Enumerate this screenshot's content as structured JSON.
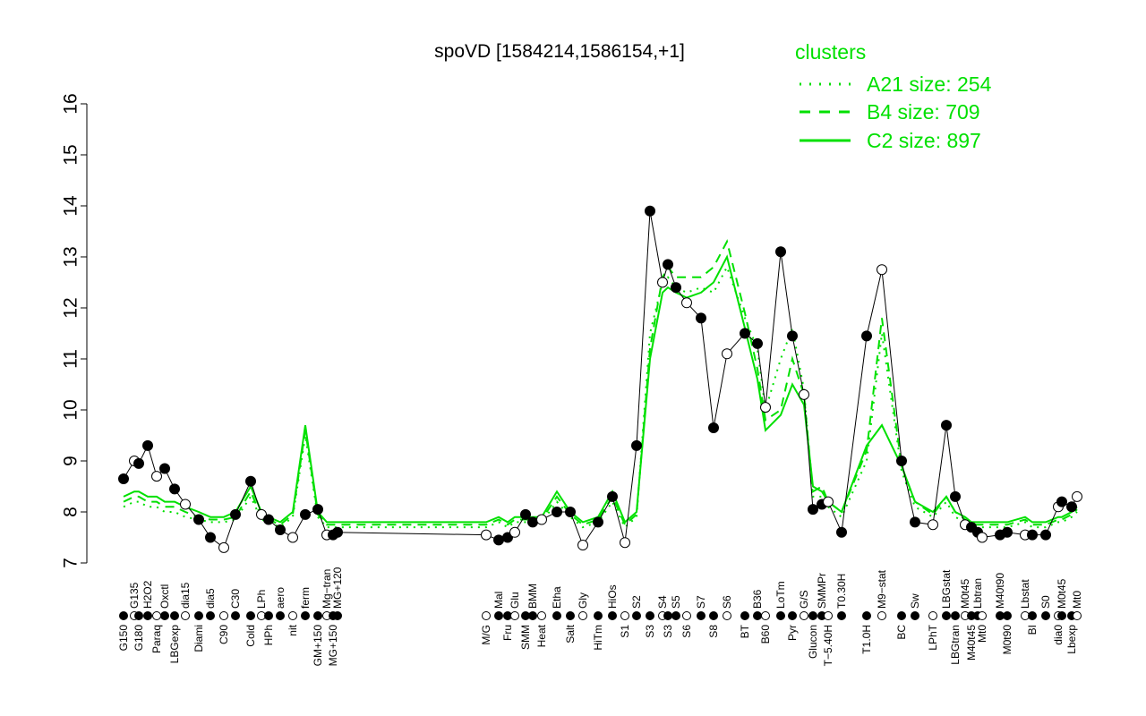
{
  "chart_data": {
    "type": "line",
    "title": "spoVD [1584214,1586154,+1]",
    "xlabel": "",
    "ylabel": "",
    "ylim": [
      7,
      16
    ],
    "yticks": [
      "7",
      "8",
      "9",
      "10",
      "11",
      "12",
      "13",
      "14",
      "15",
      "16"
    ],
    "legend": {
      "title": "clusters",
      "position": "top-right",
      "entries": [
        {
          "label": "A21 size: 254",
          "style": "dotted",
          "color": "#00e000"
        },
        {
          "label": "B4 size: 709",
          "style": "dashed",
          "color": "#00e000"
        },
        {
          "label": "C2 size: 897",
          "style": "solid",
          "color": "#00e000"
        }
      ]
    },
    "categories": [
      "G150",
      "G135",
      "G180",
      "H2O2",
      "Paraq",
      "Oxctl",
      "LBGexp",
      "dia15",
      "Diami",
      "dia5",
      "C90",
      "C30",
      "Cold",
      "LPh",
      "HPh",
      "aero",
      "nit",
      "ferm",
      "GM+150",
      "Mg−tran",
      "MG+150",
      "MG+120",
      "M/G",
      "Mal",
      "Fru",
      "Glu",
      "SMM",
      "BMM",
      "Heat",
      "Etha",
      "Salt",
      "Gly",
      "HiTm",
      "HiOs",
      "S1",
      "S2",
      "S3",
      "S4",
      "S3",
      "S5",
      "S6",
      "S7",
      "S8",
      "S6",
      "BT",
      "B36",
      "B60",
      "LoTm",
      "Pyr",
      "G/S",
      "Glucon",
      "SMMPr",
      "T−5.40H",
      "T0.30H",
      "T1.0H",
      "M9−stat",
      "BC",
      "Sw",
      "LPhT",
      "LBGstat",
      "LBGtran",
      "M0t45",
      "M40t45",
      "Lbtran",
      "Mt0",
      "M40t90",
      "M0t90",
      "Lbstat",
      "BI",
      "S0",
      "dia0",
      "M0t45",
      "Lbexp",
      "Mt0"
    ],
    "series": [
      {
        "values": [
          8.65,
          9.0,
          8.95,
          9.3,
          8.7,
          8.85,
          8.45,
          8.15,
          7.85,
          7.5,
          7.3,
          7.95,
          8.6,
          7.95,
          7.85,
          7.65,
          7.5,
          7.95,
          8.05,
          7.55,
          7.55,
          7.6,
          7.55,
          7.45,
          7.5,
          7.6,
          7.95,
          7.8,
          7.85,
          8.0,
          8.0,
          7.35,
          7.8,
          8.3,
          7.4,
          9.3,
          13.9,
          12.5,
          12.85,
          12.4,
          12.1,
          11.8,
          9.65,
          11.1,
          11.5,
          11.3,
          10.05,
          13.1,
          11.45,
          10.3,
          8.05,
          8.15,
          8.2,
          7.6,
          11.45,
          12.75,
          9.0,
          7.8,
          7.75,
          9.7,
          8.3,
          7.75,
          7.7,
          7.6,
          7.5,
          7.55,
          7.6,
          7.55,
          7.55,
          7.55,
          8.1,
          8.2,
          8.1,
          8.3
        ],
        "color": "#000000"
      },
      {
        "name": "A21 size: 254",
        "style": "dotted",
        "color": "#00e000",
        "values": [
          8.1,
          8.2,
          8.2,
          8.1,
          8.1,
          8.0,
          8.0,
          7.9,
          7.85,
          7.8,
          7.8,
          7.85,
          8.3,
          7.85,
          7.8,
          7.7,
          7.9,
          9.5,
          7.9,
          7.7,
          7.7,
          7.7,
          7.7,
          7.8,
          7.7,
          7.8,
          7.8,
          7.8,
          7.8,
          8.2,
          7.9,
          7.7,
          7.8,
          8.2,
          7.7,
          7.9,
          11.5,
          12.5,
          12.6,
          12.4,
          12.3,
          12.4,
          12.3,
          12.8,
          11.8,
          11.2,
          10.0,
          11.0,
          11.6,
          10.4,
          8.3,
          8.3,
          8.1,
          7.9,
          9.0,
          11.5,
          8.8,
          8.1,
          7.9,
          8.2,
          7.9,
          7.8,
          7.7,
          7.7,
          7.7,
          7.7,
          7.7,
          7.8,
          7.7,
          7.7,
          7.8,
          7.8,
          7.9,
          8.0
        ]
      },
      {
        "name": "B4 size: 709",
        "style": "dashed",
        "color": "#00e000",
        "values": [
          8.2,
          8.3,
          8.3,
          8.2,
          8.2,
          8.1,
          8.1,
          8.0,
          7.9,
          7.85,
          7.85,
          7.9,
          8.4,
          7.9,
          7.85,
          7.75,
          7.95,
          9.6,
          7.95,
          7.75,
          7.75,
          7.75,
          7.75,
          7.85,
          7.75,
          7.85,
          7.85,
          7.85,
          7.85,
          8.3,
          7.95,
          7.75,
          7.85,
          8.3,
          7.75,
          7.95,
          11.2,
          12.6,
          12.8,
          12.6,
          12.6,
          12.6,
          12.8,
          13.3,
          11.9,
          10.8,
          9.8,
          10.0,
          11.0,
          10.3,
          8.4,
          8.5,
          8.2,
          8.0,
          9.2,
          11.8,
          8.9,
          8.2,
          7.95,
          8.3,
          8.0,
          7.85,
          7.75,
          7.75,
          7.75,
          7.75,
          7.75,
          7.85,
          7.75,
          7.75,
          7.85,
          7.85,
          7.95,
          8.05
        ]
      },
      {
        "name": "C2 size: 897",
        "style": "solid",
        "color": "#00e000",
        "values": [
          8.3,
          8.4,
          8.4,
          8.3,
          8.3,
          8.2,
          8.2,
          8.1,
          8.0,
          7.9,
          7.9,
          8.0,
          8.5,
          8.0,
          7.9,
          7.8,
          8.0,
          9.7,
          8.0,
          7.8,
          7.8,
          7.8,
          7.8,
          7.9,
          7.8,
          7.9,
          7.9,
          7.9,
          7.9,
          8.4,
          8.0,
          7.8,
          7.9,
          8.4,
          7.8,
          8.0,
          11.0,
          12.3,
          12.4,
          12.3,
          12.2,
          12.3,
          12.5,
          13.0,
          11.6,
          10.6,
          9.6,
          9.9,
          10.5,
          10.1,
          8.5,
          8.4,
          8.2,
          8.0,
          9.3,
          9.7,
          8.9,
          8.2,
          8.0,
          8.3,
          8.0,
          7.9,
          7.8,
          7.8,
          7.8,
          7.8,
          7.8,
          7.9,
          7.8,
          7.8,
          7.9,
          7.9,
          8.0,
          8.1
        ]
      }
    ]
  }
}
